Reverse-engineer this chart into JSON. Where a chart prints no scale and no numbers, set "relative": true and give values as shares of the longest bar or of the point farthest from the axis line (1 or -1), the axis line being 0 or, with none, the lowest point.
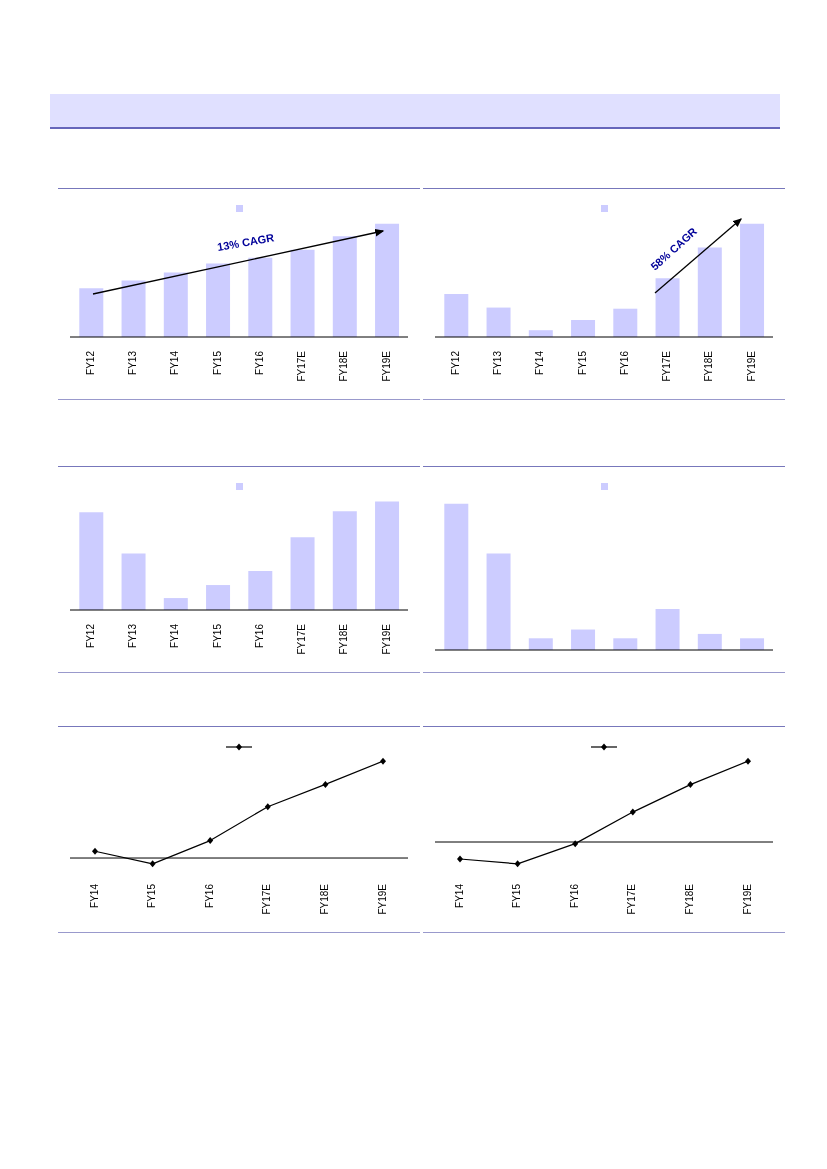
{
  "chart_data": [
    {
      "type": "bar",
      "relative": true,
      "categories": [
        "FY12",
        "FY13",
        "FY14",
        "FY15",
        "FY16",
        "FY17E",
        "FY18E",
        "FY19E"
      ],
      "values": [
        0.43,
        0.5,
        0.57,
        0.65,
        0.7,
        0.77,
        0.89,
        1
      ],
      "color": "#ccccff",
      "annotations": [
        "13% CAGR"
      ]
    },
    {
      "type": "bar",
      "relative": true,
      "categories": [
        "FY12",
        "FY13",
        "FY14",
        "FY15",
        "FY16",
        "FY17E",
        "FY18E",
        "FY19E"
      ],
      "values": [
        0.38,
        0.26,
        0.06,
        0.15,
        0.25,
        0.52,
        0.79,
        1
      ],
      "color": "#ccccff",
      "annotations": [
        "58% CAGR"
      ]
    },
    {
      "type": "bar",
      "relative": true,
      "categories": [
        "FY12",
        "FY13",
        "FY14",
        "FY15",
        "FY16",
        "FY17E",
        "FY18E",
        "FY19E"
      ],
      "values": [
        0.9,
        0.52,
        0.11,
        0.23,
        0.36,
        0.67,
        0.91,
        1
      ],
      "color": "#ccccff"
    },
    {
      "type": "bar",
      "relative": true,
      "categories": [
        null,
        null,
        null,
        null,
        null,
        null,
        null,
        null
      ],
      "values": [
        1,
        0.66,
        0.08,
        0.14,
        0.08,
        0.28,
        0.11,
        0.08
      ],
      "color": "#ccccff"
    },
    {
      "type": "line",
      "relative": true,
      "categories": [
        "FY14",
        "FY15",
        "FY16",
        "FY17E",
        "FY18E",
        "FY19E"
      ],
      "values": [
        0.07,
        -0.06,
        0.18,
        0.53,
        0.76,
        1
      ],
      "color": "#000000",
      "marker": "diamond"
    },
    {
      "type": "line",
      "relative": true,
      "categories": [
        "FY14",
        "FY15",
        "FY16",
        "FY17E",
        "FY18E",
        "FY19E"
      ],
      "values": [
        -0.21,
        -0.27,
        -0.02,
        0.37,
        0.71,
        1
      ],
      "color": "#000000",
      "marker": "diamond"
    }
  ]
}
